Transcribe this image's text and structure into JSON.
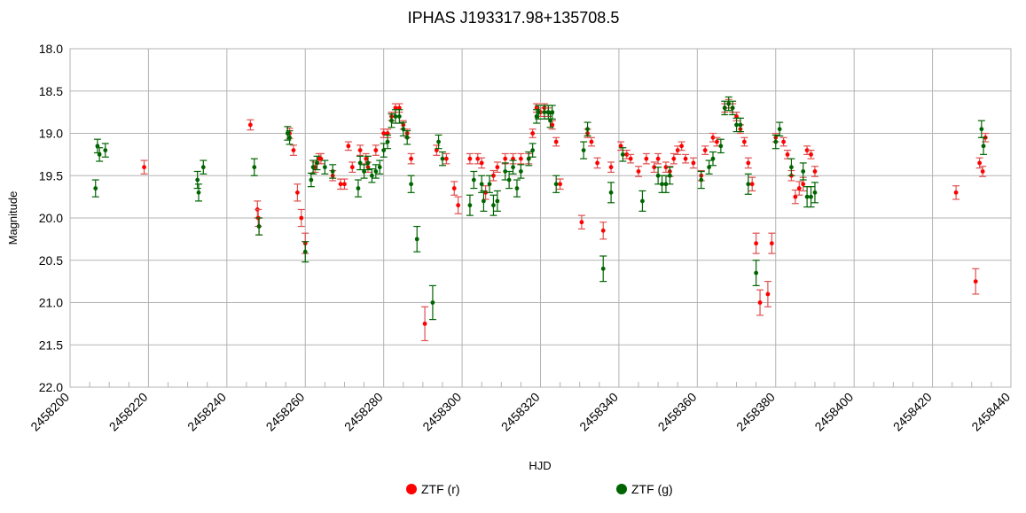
{
  "chart_data": {
    "type": "scatter",
    "title": "IPHAS J193317.98+135708.5",
    "xlabel": "HJD",
    "ylabel": "Magnitude",
    "xlim": [
      2458200,
      2458440
    ],
    "ylim": [
      18.0,
      22.0
    ],
    "y_inverted": true,
    "grid": true,
    "legend_position": "bottom",
    "x_ticks": [
      "2458200",
      "2458220",
      "2458240",
      "2458260",
      "2458280",
      "2458300",
      "2458320",
      "2458340",
      "2458360",
      "2458380",
      "2458400",
      "2458420",
      "2458440"
    ],
    "y_ticks": [
      "18.0",
      "18.5",
      "19.0",
      "19.5",
      "20.0",
      "20.5",
      "21.0",
      "21.5",
      "22.0"
    ],
    "series": [
      {
        "name": "ZTF (r)",
        "color": "#ff0000",
        "error_bar_color": "#e05050",
        "points": [
          [
            2458218.9,
            19.4,
            0.08
          ],
          [
            2458246.0,
            18.9,
            0.06
          ],
          [
            2458247.8,
            19.9,
            0.1
          ],
          [
            2458248.0,
            20.0,
            0.1
          ],
          [
            2458248.2,
            20.1,
            0.1
          ],
          [
            2458256.0,
            19.0,
            0.06
          ],
          [
            2458257.0,
            19.2,
            0.06
          ],
          [
            2458258.0,
            19.7,
            0.1
          ],
          [
            2458259.0,
            20.0,
            0.1
          ],
          [
            2458260.0,
            20.3,
            0.12
          ],
          [
            2458262.5,
            19.4,
            0.06
          ],
          [
            2458263.5,
            19.3,
            0.06
          ],
          [
            2458264.0,
            19.3,
            0.06
          ],
          [
            2458267.0,
            19.5,
            0.06
          ],
          [
            2458269.0,
            19.6,
            0.06
          ],
          [
            2458270.0,
            19.6,
            0.06
          ],
          [
            2458271.0,
            19.15,
            0.05
          ],
          [
            2458272.0,
            19.4,
            0.06
          ],
          [
            2458274.0,
            19.2,
            0.06
          ],
          [
            2458275.5,
            19.3,
            0.06
          ],
          [
            2458276.0,
            19.4,
            0.06
          ],
          [
            2458278.0,
            19.2,
            0.06
          ],
          [
            2458280.0,
            19.0,
            0.05
          ],
          [
            2458281.0,
            19.0,
            0.05
          ],
          [
            2458282.0,
            18.8,
            0.05
          ],
          [
            2458283.0,
            18.7,
            0.05
          ],
          [
            2458284.0,
            18.7,
            0.05
          ],
          [
            2458285.0,
            18.9,
            0.05
          ],
          [
            2458286.0,
            19.0,
            0.05
          ],
          [
            2458287.0,
            19.3,
            0.06
          ],
          [
            2458290.5,
            21.25,
            0.2
          ],
          [
            2458293.5,
            19.2,
            0.06
          ],
          [
            2458296.0,
            19.3,
            0.06
          ],
          [
            2458298.0,
            19.65,
            0.08
          ],
          [
            2458299.0,
            19.85,
            0.1
          ],
          [
            2458302.0,
            19.3,
            0.06
          ],
          [
            2458304.0,
            19.3,
            0.06
          ],
          [
            2458305.0,
            19.35,
            0.06
          ],
          [
            2458306.0,
            19.7,
            0.08
          ],
          [
            2458308.0,
            19.5,
            0.06
          ],
          [
            2458309.0,
            19.4,
            0.06
          ],
          [
            2458311.0,
            19.3,
            0.06
          ],
          [
            2458313.0,
            19.3,
            0.06
          ],
          [
            2458315.0,
            19.3,
            0.06
          ],
          [
            2458317.0,
            19.3,
            0.06
          ],
          [
            2458318.0,
            19.0,
            0.05
          ],
          [
            2458319.0,
            18.7,
            0.05
          ],
          [
            2458320.0,
            18.75,
            0.05
          ],
          [
            2458321.0,
            18.7,
            0.05
          ],
          [
            2458322.0,
            18.75,
            0.05
          ],
          [
            2458323.0,
            18.9,
            0.05
          ],
          [
            2458324.0,
            19.1,
            0.05
          ],
          [
            2458325.0,
            19.6,
            0.06
          ],
          [
            2458330.5,
            20.05,
            0.08
          ],
          [
            2458332.0,
            19.0,
            0.05
          ],
          [
            2458333.0,
            19.1,
            0.05
          ],
          [
            2458334.5,
            19.35,
            0.06
          ],
          [
            2458336.0,
            20.15,
            0.1
          ],
          [
            2458338.0,
            19.4,
            0.06
          ],
          [
            2458340.5,
            19.15,
            0.05
          ],
          [
            2458342.0,
            19.25,
            0.05
          ],
          [
            2458343.0,
            19.3,
            0.05
          ],
          [
            2458345.0,
            19.45,
            0.06
          ],
          [
            2458347.0,
            19.3,
            0.06
          ],
          [
            2458349.0,
            19.4,
            0.06
          ],
          [
            2458350.0,
            19.3,
            0.06
          ],
          [
            2458352.0,
            19.4,
            0.06
          ],
          [
            2458353.0,
            19.45,
            0.06
          ],
          [
            2458354.0,
            19.3,
            0.06
          ],
          [
            2458355.0,
            19.2,
            0.05
          ],
          [
            2458356.0,
            19.15,
            0.05
          ],
          [
            2458357.0,
            19.3,
            0.05
          ],
          [
            2458359.0,
            19.35,
            0.06
          ],
          [
            2458361.0,
            19.5,
            0.06
          ],
          [
            2458362.0,
            19.2,
            0.05
          ],
          [
            2458364.0,
            19.05,
            0.05
          ],
          [
            2458365.0,
            19.1,
            0.05
          ],
          [
            2458367.0,
            18.7,
            0.05
          ],
          [
            2458368.0,
            18.65,
            0.05
          ],
          [
            2458369.0,
            18.7,
            0.05
          ],
          [
            2458370.0,
            18.8,
            0.05
          ],
          [
            2458371.0,
            18.95,
            0.05
          ],
          [
            2458372.0,
            19.1,
            0.05
          ],
          [
            2458373.0,
            19.35,
            0.06
          ],
          [
            2458374.0,
            19.6,
            0.08
          ],
          [
            2458375.0,
            20.3,
            0.12
          ],
          [
            2458376.0,
            21.0,
            0.15
          ],
          [
            2458378.0,
            20.9,
            0.15
          ],
          [
            2458379.0,
            20.3,
            0.12
          ],
          [
            2458380.0,
            19.05,
            0.05
          ],
          [
            2458382.0,
            19.1,
            0.05
          ],
          [
            2458383.0,
            19.25,
            0.05
          ],
          [
            2458384.0,
            19.5,
            0.06
          ],
          [
            2458385.0,
            19.75,
            0.08
          ],
          [
            2458386.0,
            19.65,
            0.08
          ],
          [
            2458387.0,
            19.6,
            0.08
          ],
          [
            2458388.0,
            19.2,
            0.05
          ],
          [
            2458389.0,
            19.25,
            0.05
          ],
          [
            2458390.0,
            19.45,
            0.06
          ],
          [
            2458426.0,
            19.7,
            0.08
          ],
          [
            2458431.0,
            20.75,
            0.15
          ],
          [
            2458432.0,
            19.35,
            0.06
          ],
          [
            2458432.8,
            19.45,
            0.06
          ],
          [
            2458433.5,
            19.05,
            0.05
          ]
        ]
      },
      {
        "name": "ZTF (g)",
        "color": "#006400",
        "error_bar_color": "#006400",
        "points": [
          [
            2458206.5,
            19.65,
            0.1
          ],
          [
            2458207.0,
            19.15,
            0.08
          ],
          [
            2458207.5,
            19.25,
            0.08
          ],
          [
            2458209.0,
            19.2,
            0.08
          ],
          [
            2458232.5,
            19.55,
            0.1
          ],
          [
            2458232.8,
            19.7,
            0.1
          ],
          [
            2458234.0,
            19.4,
            0.08
          ],
          [
            2458247.0,
            19.4,
            0.1
          ],
          [
            2458248.2,
            20.1,
            0.1
          ],
          [
            2458255.5,
            19.0,
            0.08
          ],
          [
            2458256.0,
            19.05,
            0.08
          ],
          [
            2458260.0,
            20.4,
            0.12
          ],
          [
            2458261.5,
            19.55,
            0.08
          ],
          [
            2458262.0,
            19.4,
            0.08
          ],
          [
            2458263.0,
            19.35,
            0.08
          ],
          [
            2458265.0,
            19.4,
            0.08
          ],
          [
            2458267.0,
            19.45,
            0.08
          ],
          [
            2458273.5,
            19.65,
            0.1
          ],
          [
            2458274.0,
            19.35,
            0.08
          ],
          [
            2458275.0,
            19.45,
            0.08
          ],
          [
            2458276.0,
            19.35,
            0.08
          ],
          [
            2458277.0,
            19.5,
            0.08
          ],
          [
            2458278.0,
            19.45,
            0.08
          ],
          [
            2458279.0,
            19.4,
            0.08
          ],
          [
            2458280.0,
            19.2,
            0.08
          ],
          [
            2458281.0,
            19.1,
            0.08
          ],
          [
            2458282.0,
            18.85,
            0.08
          ],
          [
            2458283.0,
            18.8,
            0.08
          ],
          [
            2458284.0,
            18.8,
            0.08
          ],
          [
            2458285.0,
            18.95,
            0.08
          ],
          [
            2458286.0,
            19.05,
            0.08
          ],
          [
            2458287.0,
            19.6,
            0.1
          ],
          [
            2458288.5,
            20.25,
            0.15
          ],
          [
            2458292.5,
            21.0,
            0.2
          ],
          [
            2458294.0,
            19.1,
            0.08
          ],
          [
            2458295.0,
            19.3,
            0.08
          ],
          [
            2458302.0,
            19.85,
            0.12
          ],
          [
            2458303.0,
            19.55,
            0.1
          ],
          [
            2458305.0,
            19.6,
            0.1
          ],
          [
            2458305.5,
            19.8,
            0.12
          ],
          [
            2458307.0,
            19.6,
            0.1
          ],
          [
            2458308.0,
            19.85,
            0.12
          ],
          [
            2458309.0,
            19.8,
            0.12
          ],
          [
            2458311.0,
            19.45,
            0.1
          ],
          [
            2458312.0,
            19.55,
            0.1
          ],
          [
            2458313.0,
            19.4,
            0.08
          ],
          [
            2458314.0,
            19.65,
            0.1
          ],
          [
            2458315.0,
            19.45,
            0.08
          ],
          [
            2458317.0,
            19.3,
            0.08
          ],
          [
            2458318.0,
            19.2,
            0.08
          ],
          [
            2458319.0,
            18.8,
            0.08
          ],
          [
            2458319.5,
            18.75,
            0.08
          ],
          [
            2458321.0,
            18.75,
            0.08
          ],
          [
            2458322.0,
            18.75,
            0.08
          ],
          [
            2458322.5,
            18.85,
            0.08
          ],
          [
            2458323.0,
            18.75,
            0.08
          ],
          [
            2458324.0,
            19.6,
            0.1
          ],
          [
            2458331.0,
            19.2,
            0.1
          ],
          [
            2458332.0,
            18.95,
            0.08
          ],
          [
            2458336.0,
            20.6,
            0.15
          ],
          [
            2458338.0,
            19.7,
            0.12
          ],
          [
            2458341.0,
            19.25,
            0.08
          ],
          [
            2458346.0,
            19.8,
            0.12
          ],
          [
            2458350.0,
            19.5,
            0.1
          ],
          [
            2458351.0,
            19.6,
            0.1
          ],
          [
            2458352.0,
            19.6,
            0.1
          ],
          [
            2458353.0,
            19.5,
            0.1
          ],
          [
            2458361.0,
            19.55,
            0.1
          ],
          [
            2458363.0,
            19.4,
            0.08
          ],
          [
            2458364.0,
            19.3,
            0.08
          ],
          [
            2458366.0,
            19.15,
            0.08
          ],
          [
            2458367.0,
            18.7,
            0.08
          ],
          [
            2458368.0,
            18.65,
            0.08
          ],
          [
            2458369.0,
            18.7,
            0.08
          ],
          [
            2458370.0,
            18.9,
            0.08
          ],
          [
            2458371.0,
            18.9,
            0.08
          ],
          [
            2458373.0,
            19.6,
            0.12
          ],
          [
            2458375.0,
            20.65,
            0.15
          ],
          [
            2458380.0,
            19.1,
            0.08
          ],
          [
            2458381.0,
            18.95,
            0.08
          ],
          [
            2458384.0,
            19.4,
            0.1
          ],
          [
            2458387.0,
            19.45,
            0.1
          ],
          [
            2458388.0,
            19.75,
            0.12
          ],
          [
            2458389.0,
            19.75,
            0.12
          ],
          [
            2458390.0,
            19.7,
            0.12
          ],
          [
            2458432.5,
            18.95,
            0.1
          ],
          [
            2458433.0,
            19.15,
            0.1
          ]
        ]
      }
    ]
  }
}
